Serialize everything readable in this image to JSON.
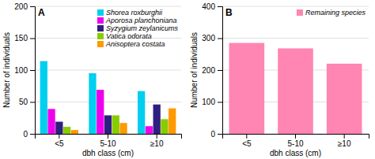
{
  "chart_data": [
    {
      "type": "bar",
      "title": "A",
      "categories": [
        "<5",
        "5-10",
        "≥10"
      ],
      "series": [
        {
          "name": "Shorea roxburghii",
          "color": "#00CFEF",
          "values": [
            114,
            95,
            67
          ]
        },
        {
          "name": "Aporosa planchoniana",
          "color": "#EE00EE",
          "values": [
            39,
            69,
            12
          ]
        },
        {
          "name": "Syzygium zeylanicums",
          "color": "#2E2080",
          "values": [
            19,
            29,
            46
          ]
        },
        {
          "name": "Vatica odorata",
          "color": "#88CC00",
          "values": [
            11,
            29,
            23
          ]
        },
        {
          "name": "Anisoptera costata",
          "color": "#FF9900",
          "values": [
            6,
            17,
            40
          ]
        }
      ],
      "xlabel": "dbh class (cm)",
      "ylabel": "Number of individuals",
      "ylim": [
        0,
        200
      ],
      "yticks": [
        0,
        50,
        100,
        150,
        200
      ],
      "grid": true,
      "legend": "upper right"
    },
    {
      "type": "bar",
      "title": "B",
      "categories": [
        "<5",
        "5-10",
        "≥10"
      ],
      "series": [
        {
          "name": "Remaining species",
          "color": "#FF85B3",
          "values": [
            285,
            268,
            220
          ]
        }
      ],
      "xlabel": "dbh class (cm)",
      "ylabel": "Number of individuals",
      "ylim": [
        0,
        400
      ],
      "yticks": [
        0,
        100,
        200,
        300,
        400
      ],
      "grid": true,
      "legend": "upper right"
    }
  ]
}
